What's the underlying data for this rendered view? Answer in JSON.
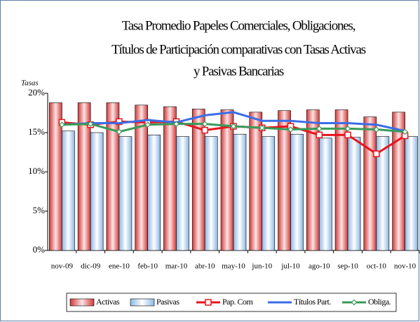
{
  "chart_data": {
    "type": "bar-line",
    "title": [
      "Tasa Promedio Papeles Comerciales, Obligaciones,",
      "Títulos de Participación comparativas con Tasas Activas",
      "y Pasivas Bancarias"
    ],
    "y_label": "Tasas",
    "categories": [
      "nov-09",
      "dic-09",
      "ene-10",
      "feb-10",
      "mar-10",
      "abr-10",
      "may-10",
      "jun-10",
      "jul-10",
      "ago-10",
      "sep-10",
      "oct-10",
      "nov-10"
    ],
    "ylim": [
      0,
      20
    ],
    "yticks": [
      {
        "value": 0,
        "label": "0%"
      },
      {
        "value": 5,
        "label": "5%"
      },
      {
        "value": 10,
        "label": "10%"
      },
      {
        "value": 15,
        "label": "15%"
      },
      {
        "value": 20,
        "label": "20%"
      }
    ],
    "series": [
      {
        "name": "Activas",
        "kind": "bar",
        "color": "#e85050",
        "values": [
          18.8,
          18.8,
          18.8,
          18.5,
          18.3,
          18.0,
          17.9,
          17.6,
          17.8,
          17.9,
          17.9,
          17.0,
          17.6
        ]
      },
      {
        "name": "Pasivas",
        "kind": "bar",
        "color": "#9cc3e8",
        "values": [
          15.2,
          15.0,
          14.5,
          14.7,
          14.5,
          14.5,
          14.8,
          14.5,
          14.8,
          14.3,
          14.4,
          14.5,
          14.5
        ]
      },
      {
        "name": "Pap. Com",
        "kind": "line",
        "marker": "square",
        "color": "#e8141e",
        "values": [
          16.3,
          16.0,
          16.4,
          16.3,
          16.4,
          15.3,
          15.8,
          15.6,
          15.8,
          14.7,
          14.7,
          12.3,
          14.6
        ]
      },
      {
        "name": "Títulos Part.",
        "kind": "line",
        "marker": "none",
        "color": "#3a6ee8",
        "values": [
          16.0,
          16.2,
          16.2,
          16.6,
          16.3,
          17.2,
          17.6,
          16.5,
          16.5,
          16.2,
          16.2,
          16.0,
          15.2
        ]
      },
      {
        "name": "Obliga.",
        "kind": "line",
        "marker": "diamond",
        "color": "#3a9a5a",
        "values": [
          16.0,
          16.1,
          15.1,
          16.0,
          16.1,
          16.1,
          15.8,
          15.6,
          15.4,
          15.5,
          15.5,
          15.4,
          15.1
        ]
      }
    ]
  }
}
